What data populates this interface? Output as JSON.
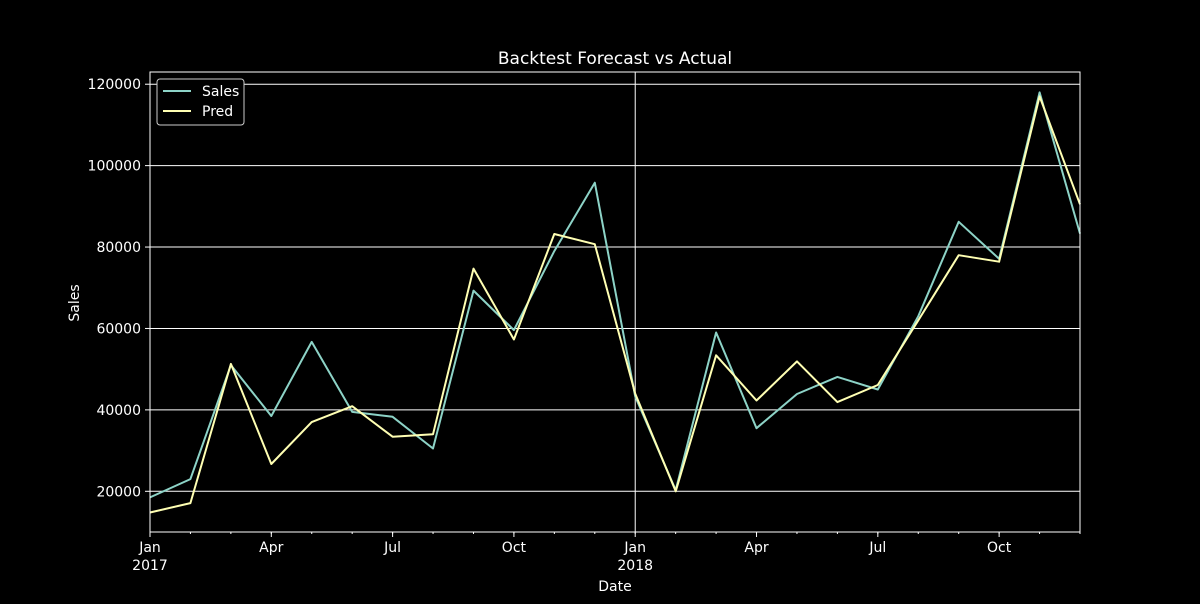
{
  "chart_data": {
    "type": "line",
    "title": "Backtest Forecast vs Actual",
    "xlabel": "Date",
    "ylabel": "Sales",
    "x": [
      "2017-01",
      "2017-02",
      "2017-03",
      "2017-04",
      "2017-05",
      "2017-06",
      "2017-07",
      "2017-08",
      "2017-09",
      "2017-10",
      "2017-11",
      "2017-12",
      "2018-01",
      "2018-02",
      "2018-03",
      "2018-04",
      "2018-05",
      "2018-06",
      "2018-07",
      "2018-08",
      "2018-09",
      "2018-10",
      "2018-11",
      "2018-12"
    ],
    "series": [
      {
        "name": "Sales",
        "color": "#8dd3c7",
        "values": [
          18500,
          23000,
          51000,
          38500,
          56700,
          39500,
          38300,
          30500,
          69300,
          59600,
          79000,
          95800,
          43300,
          20300,
          59000,
          35500,
          43900,
          48100,
          45000,
          63000,
          86200,
          77100,
          118000,
          83300
        ]
      },
      {
        "name": "Pred",
        "color": "#ffffb3",
        "values": [
          14800,
          17100,
          51300,
          26700,
          37000,
          40900,
          33400,
          34000,
          74700,
          57300,
          83200,
          80700,
          44000,
          20000,
          53400,
          42300,
          51900,
          41900,
          46100,
          62000,
          78000,
          76400,
          117000,
          90500
        ]
      }
    ],
    "ylim": [
      10000,
      123000
    ],
    "xlim": [
      "2017-01",
      "2018-12"
    ],
    "yticks": [
      {
        "value": 20000,
        "label": "20000"
      },
      {
        "value": 40000,
        "label": "40000"
      },
      {
        "value": 60000,
        "label": "60000"
      },
      {
        "value": 80000,
        "label": "80000"
      },
      {
        "value": 100000,
        "label": "100000"
      },
      {
        "value": 120000,
        "label": "120000"
      }
    ],
    "xticks": [
      {
        "month": "2017-01",
        "label": "Jan",
        "sublabel": "2017",
        "major": true
      },
      {
        "month": "2017-04",
        "label": "Apr",
        "sublabel": "",
        "major": false
      },
      {
        "month": "2017-07",
        "label": "Jul",
        "sublabel": "",
        "major": false
      },
      {
        "month": "2017-10",
        "label": "Oct",
        "sublabel": "",
        "major": false
      },
      {
        "month": "2018-01",
        "label": "Jan",
        "sublabel": "2018",
        "major": true
      },
      {
        "month": "2018-04",
        "label": "Apr",
        "sublabel": "",
        "major": false
      },
      {
        "month": "2018-07",
        "label": "Jul",
        "sublabel": "",
        "major": false
      },
      {
        "month": "2018-10",
        "label": "Oct",
        "sublabel": "",
        "major": false
      }
    ],
    "grid": "horizontal-major-y and vertical-major-x",
    "legend": "top-left",
    "background": "#000000",
    "foreground": "#ffffff"
  }
}
